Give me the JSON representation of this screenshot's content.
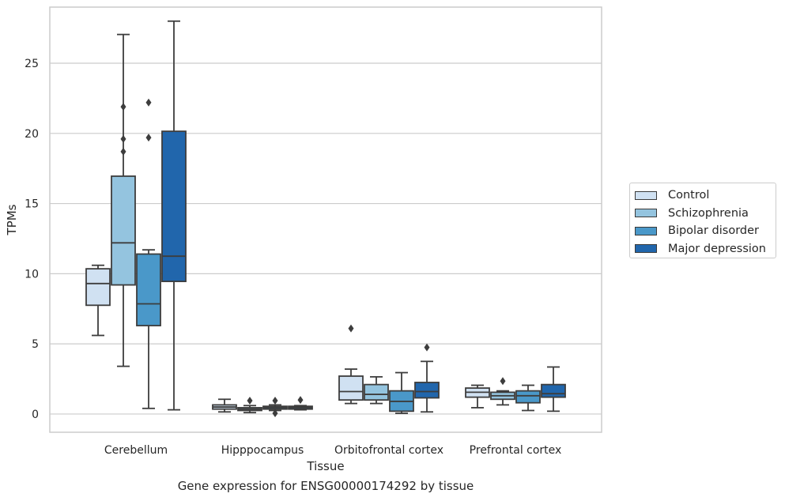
{
  "chart_data": {
    "type": "box",
    "caption": "Gene expression for ENSG00000174292 by tissue",
    "xlabel": "Tissue",
    "ylabel": "TPMs",
    "ylim": [
      -1.3,
      29.0
    ],
    "yticks": [
      0,
      5,
      10,
      15,
      20,
      25
    ],
    "grid": "horizontal",
    "legend_position": "right",
    "categories": [
      "Cerebellum",
      "Hipppocampus",
      "Orbitofrontal cortex",
      "Prefrontal cortex"
    ],
    "series": [
      {
        "name": "Control",
        "color": "#d0e1f2",
        "boxes": [
          {
            "whislo": 5.6,
            "q1": 7.75,
            "med": 9.3,
            "q3": 10.35,
            "whishi": 10.6,
            "fliers": []
          },
          {
            "whislo": 0.15,
            "q1": 0.35,
            "med": 0.5,
            "q3": 0.65,
            "whishi": 1.05,
            "fliers": []
          },
          {
            "whislo": 0.75,
            "q1": 1.0,
            "med": 1.6,
            "q3": 2.7,
            "whishi": 3.2,
            "fliers": [
              6.1
            ]
          },
          {
            "whislo": 0.45,
            "q1": 1.2,
            "med": 1.55,
            "q3": 1.85,
            "whishi": 2.05,
            "fliers": []
          }
        ]
      },
      {
        "name": "Schizophrenia",
        "color": "#94c4df",
        "boxes": [
          {
            "whislo": 3.4,
            "q1": 9.2,
            "med": 12.2,
            "q3": 16.95,
            "whishi": 27.05,
            "fliers": [
              21.9,
              19.6,
              18.7
            ]
          },
          {
            "whislo": 0.1,
            "q1": 0.25,
            "med": 0.35,
            "q3": 0.45,
            "whishi": 0.6,
            "fliers": [
              0.95
            ]
          },
          {
            "whislo": 0.75,
            "q1": 1.0,
            "med": 1.4,
            "q3": 2.1,
            "whishi": 2.65,
            "fliers": []
          },
          {
            "whislo": 0.65,
            "q1": 1.05,
            "med": 1.3,
            "q3": 1.55,
            "whishi": 1.65,
            "fliers": [
              2.35
            ]
          }
        ]
      },
      {
        "name": "Bipolar disorder",
        "color": "#4a98c9",
        "boxes": [
          {
            "whislo": 0.4,
            "q1": 6.3,
            "med": 7.85,
            "q3": 11.4,
            "whishi": 11.7,
            "fliers": [
              22.2,
              19.7
            ]
          },
          {
            "whislo": 0.25,
            "q1": 0.35,
            "med": 0.45,
            "q3": 0.55,
            "whishi": 0.65,
            "fliers": [
              0.95,
              0.05
            ]
          },
          {
            "whislo": 0.05,
            "q1": 0.2,
            "med": 0.9,
            "q3": 1.65,
            "whishi": 2.95,
            "fliers": []
          },
          {
            "whislo": 0.25,
            "q1": 0.8,
            "med": 1.3,
            "q3": 1.65,
            "whishi": 2.05,
            "fliers": []
          }
        ]
      },
      {
        "name": "Major depression",
        "color": "#2166ac",
        "boxes": [
          {
            "whislo": 0.3,
            "q1": 9.45,
            "med": 11.25,
            "q3": 20.15,
            "whishi": 28.0,
            "fliers": []
          },
          {
            "whislo": 0.3,
            "q1": 0.35,
            "med": 0.45,
            "q3": 0.55,
            "whishi": 0.6,
            "fliers": [
              1.0
            ]
          },
          {
            "whislo": 0.15,
            "q1": 1.15,
            "med": 1.6,
            "q3": 2.25,
            "whishi": 3.75,
            "fliers": [
              4.75
            ]
          },
          {
            "whislo": 0.2,
            "q1": 1.2,
            "med": 1.45,
            "q3": 2.1,
            "whishi": 3.35,
            "fliers": []
          }
        ]
      }
    ]
  }
}
